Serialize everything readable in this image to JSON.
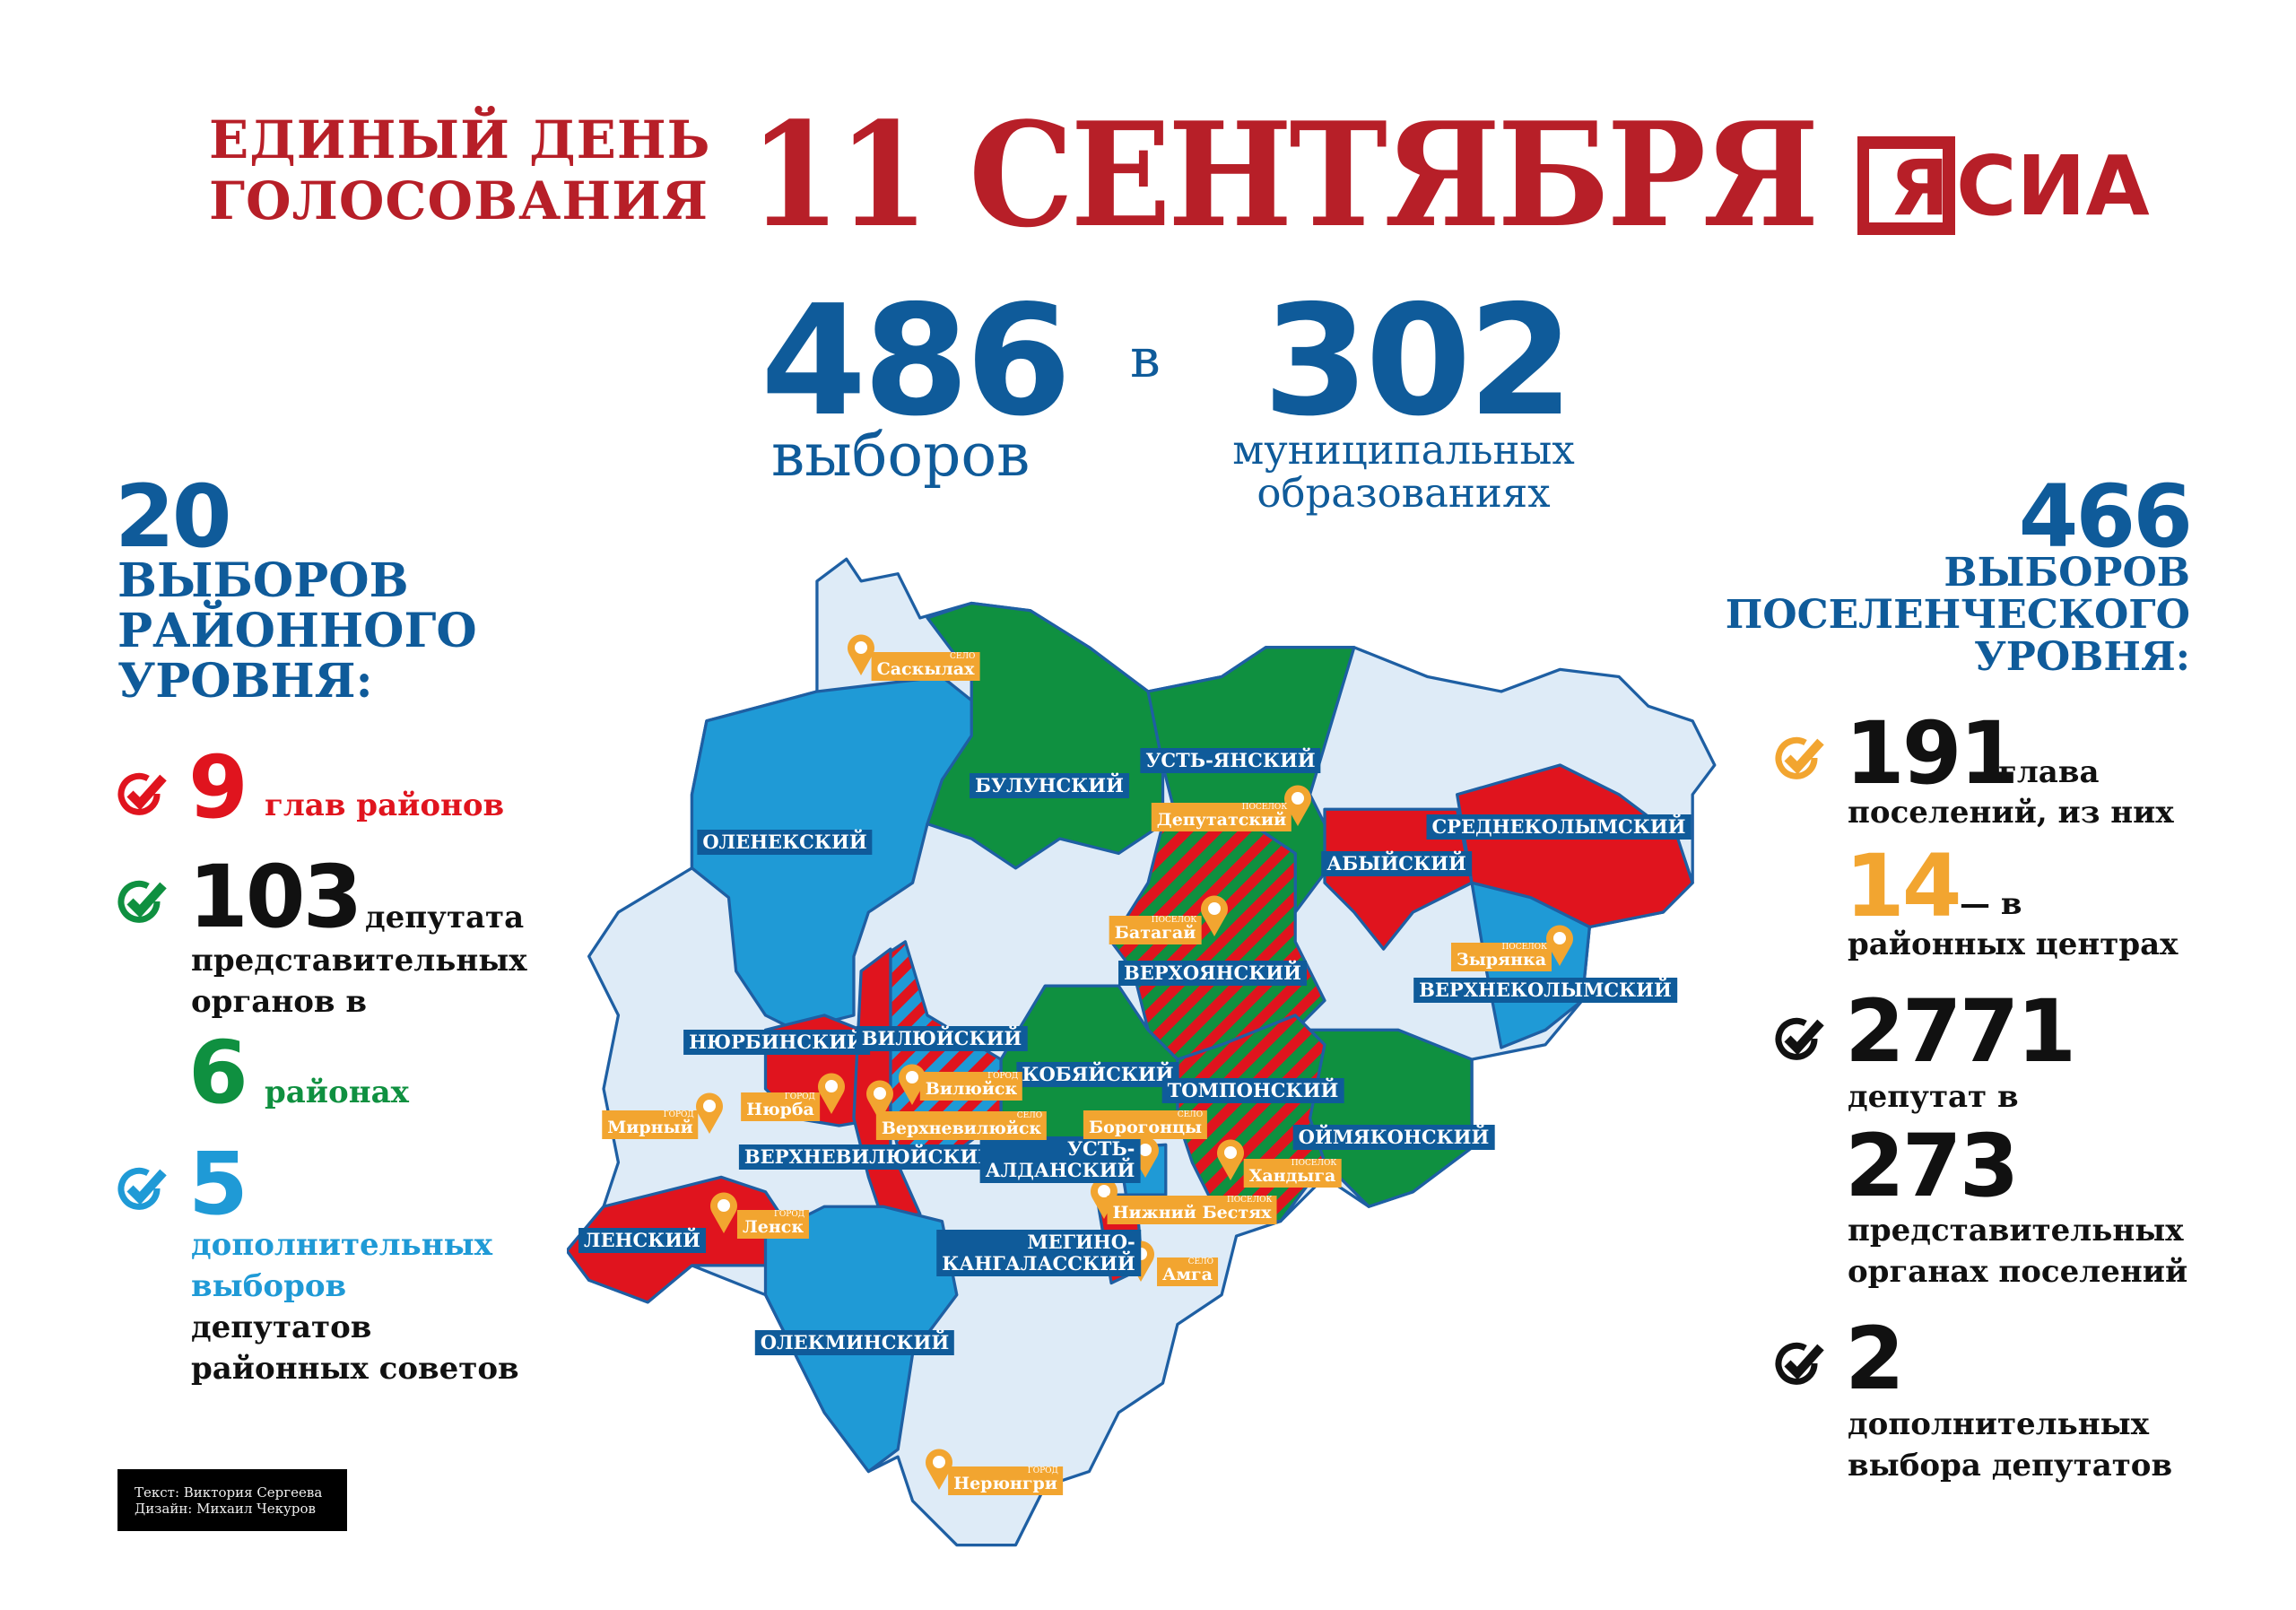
{
  "header": {
    "subtitle_lines": [
      "ЕДИНЫЙ ДЕНЬ",
      "ГОЛОСОВАНИЯ"
    ],
    "date": "11 СЕНТЯБРЯ",
    "logo_text": "ЯСИА",
    "brand_color": "#b71f28"
  },
  "summary": {
    "elections_count": "486",
    "elections_label": "выборов",
    "connector": "в",
    "municipalities_count": "302",
    "municipalities_label_lines": [
      "муниципальных",
      "образованиях"
    ]
  },
  "left_panel": {
    "count": "20",
    "heading_lines": [
      "ВЫБОРОВ",
      "РАЙОННОГО",
      "УРОВНЯ:"
    ],
    "items": [
      {
        "number": "9",
        "text_inline": "глав районов",
        "color": "#e0141e"
      },
      {
        "number": "103",
        "text_inline": "депутата",
        "text_lines": [
          "представительных",
          "органов в"
        ],
        "sub_number": "6",
        "sub_text": "районах",
        "color": "#0f9040"
      },
      {
        "number": "5",
        "text_lines_colored": [
          "дополнительных",
          "выборов"
        ],
        "text_lines": [
          "депутатов",
          "районных советов"
        ],
        "color": "#1f9ad6"
      }
    ]
  },
  "right_panel": {
    "count": "466",
    "heading_lines": [
      "ВЫБОРОВ",
      "ПОСЕЛЕНЧЕСКОГО",
      "УРОВНЯ:"
    ],
    "items": [
      {
        "number": "191",
        "text_inline": "глава",
        "text_lines": [
          "поселений, из них"
        ],
        "sub_number": "14",
        "sub_text": "— в",
        "sub_lines": [
          "районных центрах"
        ]
      },
      {
        "number": "2771",
        "text_lines": [
          "депутат в"
        ],
        "sub_number": "273",
        "sub_lines": [
          "представительных",
          "органах поселений"
        ]
      },
      {
        "number": "2",
        "text_lines": [
          "дополнительных",
          "выбора депутатов"
        ]
      }
    ],
    "accent_color": "#f2a530"
  },
  "map": {
    "legend_colors": {
      "heads": "#e0141e",
      "deputies": "#0f9040",
      "additional": "#1f9ad6",
      "none": "#deebf7",
      "border": "#1e5fa3"
    },
    "districts": [
      "ОЛЕНЕКСКИЙ",
      "БУЛУНСКИЙ",
      "УСТЬ-ЯНСКИЙ",
      "АБЫЙСКИЙ",
      "СРЕДНЕКОЛЫМСКИЙ",
      "ВЕРХОЯНСКИЙ",
      "ВЕРХНЕКОЛЫМСКИЙ",
      "НЮРБИНСКИЙ",
      "ВИЛЮЙСКИЙ",
      "КОБЯЙСКИЙ",
      "ТОМПОНСКИЙ",
      "ВЕРХНЕВИЛЮЙСКИЙ",
      "УСТЬ-\nАЛДАНСКИЙ",
      "ОЙМЯКОНСКИЙ",
      "ЛЕНСКИЙ",
      "МЕГИНО-\nКАНГАЛАССКИЙ",
      "ОЛЕКМИНСКИЙ"
    ],
    "cities": [
      {
        "name": "Саскылах",
        "kind": "село"
      },
      {
        "name": "Депутатский",
        "kind": "поселок"
      },
      {
        "name": "Батагай",
        "kind": "поселок"
      },
      {
        "name": "Зырянка",
        "kind": "поселок"
      },
      {
        "name": "Нюрба",
        "kind": "город"
      },
      {
        "name": "Вилюйск",
        "kind": "город"
      },
      {
        "name": "Верхневилюйск",
        "kind": "село"
      },
      {
        "name": "Мирный",
        "kind": "город"
      },
      {
        "name": "Борогонцы",
        "kind": "село"
      },
      {
        "name": "Хандыга",
        "kind": "поселок"
      },
      {
        "name": "Нижний Бестях",
        "kind": "поселок"
      },
      {
        "name": "Ленск",
        "kind": "город"
      },
      {
        "name": "Амга",
        "kind": "село"
      },
      {
        "name": "Нерюнгри",
        "kind": "город"
      }
    ]
  },
  "credits": {
    "text": "Текст: Виктория Сергеева",
    "design": "Дизайн: Михаил Чекуров"
  }
}
